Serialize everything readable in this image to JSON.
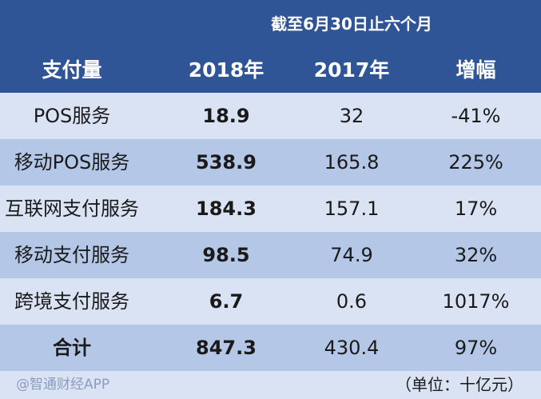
{
  "chart_data": {
    "type": "table",
    "period_header": "截至6月30日止六个月",
    "columns": [
      "支付量",
      "2018年",
      "2017年",
      "增幅"
    ],
    "rows": [
      {
        "name": "POS服务",
        "y2018": "18.9",
        "y2017": "32",
        "growth": "-41%"
      },
      {
        "name": "移动POS服务",
        "y2018": "538.9",
        "y2017": "165.8",
        "growth": "225%"
      },
      {
        "name": "互联网支付服务",
        "y2018": "184.3",
        "y2017": "157.1",
        "growth": "17%"
      },
      {
        "name": "移动支付服务",
        "y2018": "98.5",
        "y2017": "74.9",
        "growth": "32%"
      },
      {
        "name": "跨境支付服务",
        "y2018": "6.7",
        "y2017": "0.6",
        "growth": "1017%"
      },
      {
        "name": "合计",
        "y2018": "847.3",
        "y2017": "430.4",
        "growth": "97%"
      }
    ],
    "unit": "（单位：十亿元）"
  },
  "watermark": "@智通财经APP",
  "colors": {
    "header": "#2f5597",
    "row_light": "#dae3f3",
    "row_dark": "#b4c7e7"
  }
}
